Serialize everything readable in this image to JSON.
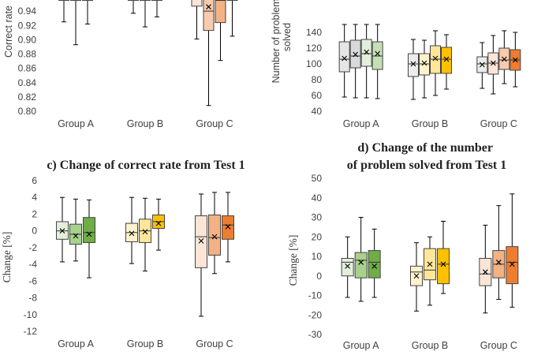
{
  "chart_data": [
    {
      "id": "a",
      "type": "box",
      "title": "",
      "ylabel": "Correct rate",
      "ylim": [
        0.8,
        0.96
      ],
      "yticks": [
        0.8,
        0.82,
        0.84,
        0.86,
        0.88,
        0.9,
        0.92,
        0.94
      ],
      "tick_decimals": 2,
      "categories": [
        "Group A",
        "Group B",
        "Group C"
      ],
      "colors": [
        [
          "#ececec",
          "#e2efda",
          "#c5e0b4"
        ],
        [
          "#fff2cc",
          "#ffe699",
          "#ffd966"
        ],
        [
          "#fbe5d6",
          "#f8cbad",
          "#f4b183"
        ]
      ],
      "groups": [
        [
          {
            "min": 0.925,
            "q1": 0.955,
            "median": 0.96,
            "q3": 0.96,
            "max": 0.96,
            "mean": 0.96
          },
          {
            "min": 0.893,
            "q1": 0.955,
            "median": 0.96,
            "q3": 0.96,
            "max": 0.96,
            "mean": 0.96
          },
          {
            "min": 0.922,
            "q1": 0.955,
            "median": 0.96,
            "q3": 0.96,
            "max": 0.96,
            "mean": 0.96
          }
        ],
        [
          {
            "min": 0.937,
            "q1": 0.955,
            "median": 0.96,
            "q3": 0.96,
            "max": 0.96,
            "mean": 0.96
          },
          {
            "min": 0.918,
            "q1": 0.955,
            "median": 0.96,
            "q3": 0.96,
            "max": 0.96,
            "mean": 0.96
          },
          {
            "min": 0.932,
            "q1": 0.955,
            "median": 0.96,
            "q3": 0.96,
            "max": 0.96,
            "mean": 0.96
          }
        ],
        [
          {
            "min": 0.901,
            "q1": 0.947,
            "median": 0.96,
            "q3": 0.96,
            "max": 0.96,
            "mean": 0.96
          },
          {
            "min": 0.808,
            "q1": 0.913,
            "median": 0.94,
            "q3": 0.96,
            "max": 0.96,
            "mean": 0.946
          },
          {
            "min": 0.871,
            "q1": 0.924,
            "median": 0.955,
            "q3": 0.96,
            "max": 0.96,
            "mean": 0.96
          },
          {
            "min": 0.905,
            "q1": 0.955,
            "median": 0.96,
            "q3": 0.96,
            "max": 0.96,
            "mean": 0.96
          }
        ]
      ]
    },
    {
      "id": "b",
      "type": "box",
      "title": "",
      "ylabel": "Number of problems solved",
      "ylim": [
        40,
        150
      ],
      "yticks": [
        40,
        60,
        80,
        100,
        120,
        140
      ],
      "tick_decimals": 0,
      "categories": [
        "Group A",
        "Group B",
        "Group C"
      ],
      "colors": [
        [
          "#e7e6e6",
          "#d9d9d9",
          "#e2efda",
          "#c5e0b4",
          "#70ad47"
        ],
        [
          "#ececec",
          "#fff2cc",
          "#ffe699",
          "#ffc000"
        ],
        [
          "#ececec",
          "#fbe5d6",
          "#f8cbad",
          "#ed7d31"
        ]
      ],
      "groups": [
        [
          {
            "min": 58,
            "q1": 90,
            "median": 106,
            "q3": 128,
            "max": 150,
            "mean": 107
          },
          {
            "min": 57,
            "q1": 95,
            "median": 110,
            "q3": 130,
            "max": 150,
            "mean": 112
          },
          {
            "min": 57,
            "q1": 97,
            "median": 113,
            "q3": 131,
            "max": 150,
            "mean": 115
          },
          {
            "min": 56,
            "q1": 93,
            "median": 110,
            "q3": 128,
            "max": 150,
            "mean": 113
          }
        ],
        [
          {
            "min": 55,
            "q1": 84,
            "median": 100,
            "q3": 113,
            "max": 131,
            "mean": 100
          },
          {
            "min": 57,
            "q1": 86,
            "median": 100,
            "q3": 113,
            "max": 130,
            "mean": 101
          },
          {
            "min": 60,
            "q1": 88,
            "median": 106,
            "q3": 123,
            "max": 142,
            "mean": 107
          },
          {
            "min": 68,
            "q1": 88,
            "median": 106,
            "q3": 121,
            "max": 137,
            "mean": 106
          }
        ],
        [
          {
            "min": 69,
            "q1": 89,
            "median": 100,
            "q3": 109,
            "max": 127,
            "mean": 99
          },
          {
            "min": 62,
            "q1": 87,
            "median": 101,
            "q3": 114,
            "max": 136,
            "mean": 101
          },
          {
            "min": 75,
            "q1": 93,
            "median": 105,
            "q3": 120,
            "max": 142,
            "mean": 106
          },
          {
            "min": 71,
            "q1": 92,
            "median": 105,
            "q3": 118,
            "max": 140,
            "mean": 105
          }
        ]
      ]
    },
    {
      "id": "c",
      "type": "box",
      "title": "c) Change of correct rate from Test 1",
      "ylabel": "Change [%]",
      "ylim": [
        -12,
        6
      ],
      "yticks": [
        -12,
        -10,
        -8,
        -6,
        -4,
        -2,
        0,
        2,
        4,
        6
      ],
      "tick_decimals": 0,
      "categories": [
        "Group A",
        "Group B",
        "Group C"
      ],
      "colors": [
        [
          "#e2efda",
          "#a9d18e",
          "#70ad47"
        ],
        [
          "#fff2cc",
          "#ffe699",
          "#ffc000"
        ],
        [
          "#fbe5d6",
          "#f4b183",
          "#ed7d31"
        ]
      ],
      "groups": [
        [
          {
            "min": -3.7,
            "q1": -1.0,
            "median": 0.0,
            "q3": 1.1,
            "max": 4.0,
            "mean": 0.0
          },
          {
            "min": -3.6,
            "q1": -1.6,
            "median": -0.4,
            "q3": 0.8,
            "max": 3.8,
            "mean": -0.6
          },
          {
            "min": -5.6,
            "q1": -1.4,
            "median": -0.2,
            "q3": 1.6,
            "max": 3.7,
            "mean": -0.4
          }
        ],
        [
          {
            "min": -3.9,
            "q1": -1.3,
            "median": -0.2,
            "q3": 0.9,
            "max": 4.0,
            "mean": -0.3
          },
          {
            "min": -4.8,
            "q1": -1.4,
            "median": 0.0,
            "q3": 1.4,
            "max": 3.9,
            "mean": -0.1
          },
          {
            "min": -2.3,
            "q1": 0.3,
            "median": 1.1,
            "q3": 1.9,
            "max": 3.8,
            "mean": 0.9
          }
        ],
        [
          {
            "min": -10.2,
            "q1": -4.4,
            "median": -0.7,
            "q3": 1.8,
            "max": 4.4,
            "mean": -1.2
          },
          {
            "min": -5.1,
            "q1": -2.9,
            "median": -0.8,
            "q3": 1.9,
            "max": 4.6,
            "mean": -0.7
          },
          {
            "min": -3.7,
            "q1": -1.0,
            "median": 0.7,
            "q3": 1.8,
            "max": 4.6,
            "mean": 0.5
          }
        ]
      ]
    },
    {
      "id": "d",
      "type": "box",
      "title": "d) Change of the number of problem solved from Test 1",
      "title_lines": [
        "d) Change of the number",
        "of problem solved from Test 1"
      ],
      "ylabel": "Change [%]",
      "ylim": [
        -30,
        50
      ],
      "yticks": [
        -30,
        -20,
        -10,
        0,
        10,
        20,
        30,
        40,
        50
      ],
      "tick_decimals": 0,
      "categories": [
        "Group A",
        "Group B",
        "Group C"
      ],
      "colors": [
        [
          "#e2efda",
          "#a9d18e",
          "#70ad47"
        ],
        [
          "#fff2cc",
          "#ffe699",
          "#ffc000"
        ],
        [
          "#fbe5d6",
          "#f4b183",
          "#ed7d31"
        ]
      ],
      "groups": [
        [
          {
            "min": -11,
            "q1": 0,
            "median": 7,
            "q3": 9,
            "max": 20,
            "mean": 5
          },
          {
            "min": -13,
            "q1": -1,
            "median": 8,
            "q3": 12,
            "max": 30,
            "mean": 7
          },
          {
            "min": -11,
            "q1": -1,
            "median": 7,
            "q3": 13,
            "max": 24,
            "mean": 5
          }
        ],
        [
          {
            "min": -18,
            "q1": -5,
            "median": 2,
            "q3": 5,
            "max": 17,
            "mean": 0
          },
          {
            "min": -15,
            "q1": -2,
            "median": 3,
            "q3": 14,
            "max": 20,
            "mean": 6
          },
          {
            "min": -9,
            "q1": -4,
            "median": 6,
            "q3": 14,
            "max": 28,
            "mean": 6
          }
        ],
        [
          {
            "min": -19,
            "q1": -5,
            "median": 1,
            "q3": 9,
            "max": 26,
            "mean": 2
          },
          {
            "min": -12,
            "q1": -1,
            "median": 6,
            "q3": 13,
            "max": 36,
            "mean": 7
          },
          {
            "min": -16,
            "q1": -4,
            "median": 7,
            "q3": 15,
            "max": 42,
            "mean": 6
          }
        ]
      ]
    }
  ]
}
